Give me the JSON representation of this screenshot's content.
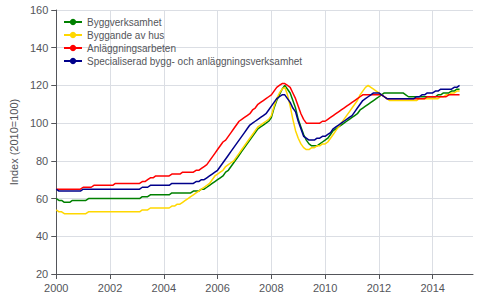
{
  "chart_data": {
    "type": "line",
    "ylabel": "Index (2010=100)",
    "xlim": [
      2000,
      2015.5
    ],
    "ylim": [
      20,
      160
    ],
    "xticks": [
      2000,
      2002,
      2004,
      2006,
      2008,
      2010,
      2012,
      2014
    ],
    "yticks": [
      20,
      40,
      60,
      80,
      100,
      120,
      140,
      160
    ],
    "grid": true,
    "legend": "upper left",
    "x": [
      2000.0,
      2000.1,
      2000.2,
      2000.3,
      2000.4,
      2000.5,
      2000.6,
      2000.7,
      2000.8,
      2000.9,
      2001.0,
      2001.1,
      2001.2,
      2001.3,
      2001.4,
      2001.5,
      2001.6,
      2001.7,
      2001.8,
      2001.9,
      2002.0,
      2002.1,
      2002.2,
      2002.3,
      2002.4,
      2002.5,
      2002.6,
      2002.7,
      2002.8,
      2002.9,
      2003.0,
      2003.1,
      2003.2,
      2003.3,
      2003.4,
      2003.5,
      2003.6,
      2003.7,
      2003.8,
      2003.9,
      2004.0,
      2004.1,
      2004.2,
      2004.3,
      2004.4,
      2004.5,
      2004.6,
      2004.7,
      2004.8,
      2004.9,
      2005.0,
      2005.1,
      2005.2,
      2005.3,
      2005.4,
      2005.5,
      2005.6,
      2005.7,
      2005.8,
      2005.9,
      2006.0,
      2006.1,
      2006.2,
      2006.3,
      2006.4,
      2006.5,
      2006.6,
      2006.7,
      2006.8,
      2006.9,
      2007.0,
      2007.1,
      2007.2,
      2007.3,
      2007.4,
      2007.5,
      2007.6,
      2007.7,
      2007.8,
      2007.9,
      2008.0,
      2008.1,
      2008.2,
      2008.3,
      2008.4,
      2008.5,
      2008.6,
      2008.7,
      2008.8,
      2008.9,
      2009.0,
      2009.1,
      2009.2,
      2009.3,
      2009.4,
      2009.5,
      2009.6,
      2009.7,
      2009.8,
      2009.9,
      2010.0,
      2010.1,
      2010.2,
      2010.3,
      2010.4,
      2010.5,
      2010.6,
      2010.7,
      2010.8,
      2010.9,
      2011.0,
      2011.1,
      2011.2,
      2011.3,
      2011.4,
      2011.5,
      2011.6,
      2011.7,
      2011.8,
      2011.9,
      2012.0,
      2012.1,
      2012.2,
      2012.3,
      2012.4,
      2012.5,
      2012.6,
      2012.7,
      2012.8,
      2012.9,
      2013.0,
      2013.1,
      2013.2,
      2013.3,
      2013.4,
      2013.5,
      2013.6,
      2013.7,
      2013.8,
      2013.9,
      2014.0,
      2014.1,
      2014.2,
      2014.3,
      2014.4,
      2014.5,
      2014.6,
      2014.7,
      2014.8,
      2014.9,
      2015.0
    ],
    "series": [
      {
        "name": "Byggverksamhet",
        "color": "#008000",
        "values": [
          60,
          59,
          59,
          58,
          58,
          58,
          59,
          59,
          59,
          59,
          59,
          59,
          60,
          60,
          60,
          60,
          60,
          60,
          60,
          60,
          60,
          60,
          60,
          60,
          60,
          60,
          60,
          60,
          60,
          60,
          60,
          60,
          61,
          61,
          61,
          62,
          62,
          62,
          62,
          62,
          62,
          62,
          62,
          63,
          63,
          63,
          63,
          63,
          63,
          63,
          63,
          64,
          64,
          64,
          65,
          65,
          66,
          67,
          68,
          69,
          70,
          71,
          72,
          74,
          75,
          77,
          79,
          81,
          83,
          85,
          87,
          89,
          91,
          93,
          95,
          97,
          98,
          99,
          100,
          101,
          103,
          108,
          112,
          115,
          118,
          120,
          118,
          116,
          112,
          108,
          102,
          98,
          94,
          91,
          89,
          88,
          88,
          88,
          89,
          90,
          91,
          92,
          94,
          96,
          97,
          98,
          99,
          100,
          101,
          102,
          103,
          104,
          105,
          107,
          108,
          109,
          110,
          111,
          112,
          113,
          114,
          115,
          116,
          116,
          116,
          116,
          116,
          116,
          116,
          116,
          115,
          114,
          114,
          114,
          114,
          114,
          114,
          114,
          114,
          114,
          114,
          114,
          115,
          115,
          116,
          116,
          116,
          117,
          117,
          118,
          118
        ]
      },
      {
        "name": "Byggande av hus",
        "color": "#FFD700",
        "values": [
          54,
          53,
          53,
          52,
          52,
          52,
          52,
          52,
          52,
          52,
          52,
          52,
          53,
          53,
          53,
          53,
          53,
          53,
          53,
          53,
          53,
          53,
          53,
          53,
          53,
          53,
          53,
          53,
          53,
          53,
          53,
          53,
          54,
          54,
          54,
          55,
          55,
          55,
          55,
          55,
          55,
          55,
          55,
          56,
          56,
          57,
          57,
          58,
          59,
          60,
          61,
          62,
          63,
          64,
          65,
          66,
          67,
          68,
          70,
          72,
          73,
          74,
          75,
          77,
          78,
          79,
          80,
          82,
          84,
          86,
          88,
          90,
          92,
          94,
          96,
          98,
          99,
          100,
          101,
          102,
          104,
          109,
          113,
          116,
          118,
          119,
          115,
          109,
          102,
          96,
          92,
          89,
          87,
          86,
          86,
          87,
          87,
          88,
          88,
          89,
          89,
          90,
          92,
          94,
          96,
          98,
          100,
          102,
          104,
          106,
          108,
          110,
          112,
          115,
          117,
          119,
          120,
          119,
          118,
          117,
          116,
          115,
          114,
          113,
          112,
          112,
          112,
          112,
          112,
          112,
          112,
          112,
          112,
          112,
          112,
          113,
          113,
          113,
          113,
          113,
          113,
          113,
          113,
          114,
          114,
          115,
          115,
          116,
          116,
          117,
          117
        ]
      },
      {
        "name": "Anläggningsarbeten",
        "color": "#FF0000",
        "values": [
          65,
          65,
          65,
          65,
          65,
          65,
          65,
          65,
          65,
          65,
          66,
          66,
          66,
          66,
          67,
          67,
          67,
          67,
          67,
          67,
          67,
          67,
          68,
          68,
          68,
          68,
          68,
          68,
          68,
          68,
          68,
          68,
          69,
          69,
          70,
          71,
          71,
          72,
          72,
          72,
          72,
          72,
          72,
          73,
          73,
          73,
          73,
          74,
          74,
          74,
          74,
          74,
          75,
          75,
          76,
          77,
          78,
          80,
          82,
          84,
          86,
          88,
          90,
          91,
          93,
          95,
          97,
          99,
          101,
          102,
          103,
          104,
          105,
          107,
          108,
          110,
          111,
          112,
          113,
          114,
          115,
          117,
          119,
          120,
          121,
          121,
          120,
          119,
          116,
          113,
          109,
          105,
          102,
          100,
          100,
          100,
          100,
          100,
          100,
          101,
          101,
          102,
          103,
          104,
          105,
          106,
          107,
          108,
          109,
          110,
          111,
          112,
          113,
          114,
          115,
          115,
          115,
          115,
          115,
          115,
          115,
          115,
          114,
          113,
          113,
          113,
          113,
          113,
          113,
          113,
          113,
          113,
          113,
          113,
          113,
          113,
          113,
          113,
          114,
          114,
          114,
          114,
          114,
          114,
          114,
          114,
          115,
          115,
          115,
          115,
          115
        ]
      },
      {
        "name": "Specialiserad bygg- och anläggningsverksamhet",
        "color": "#00008B",
        "values": [
          65,
          64,
          64,
          64,
          64,
          64,
          64,
          64,
          64,
          64,
          65,
          65,
          65,
          65,
          65,
          65,
          65,
          65,
          65,
          65,
          65,
          65,
          65,
          65,
          65,
          65,
          65,
          65,
          65,
          65,
          65,
          65,
          66,
          66,
          66,
          67,
          67,
          67,
          67,
          67,
          67,
          67,
          67,
          68,
          68,
          68,
          68,
          68,
          68,
          68,
          68,
          68,
          69,
          69,
          70,
          70,
          71,
          72,
          73,
          74,
          75,
          77,
          79,
          81,
          83,
          85,
          87,
          89,
          91,
          93,
          95,
          97,
          99,
          100,
          101,
          102,
          103,
          104,
          105,
          107,
          109,
          111,
          113,
          114,
          115,
          115,
          113,
          111,
          108,
          106,
          101,
          97,
          93,
          92,
          91,
          91,
          91,
          92,
          92,
          93,
          93,
          94,
          95,
          97,
          98,
          99,
          100,
          101,
          102,
          103,
          104,
          106,
          108,
          110,
          112,
          113,
          114,
          115,
          116,
          116,
          116,
          115,
          114,
          113,
          113,
          113,
          113,
          113,
          113,
          113,
          113,
          113,
          113,
          113,
          114,
          114,
          115,
          115,
          116,
          116,
          116,
          117,
          117,
          118,
          118,
          118,
          118,
          118,
          119,
          119,
          120
        ]
      }
    ]
  }
}
